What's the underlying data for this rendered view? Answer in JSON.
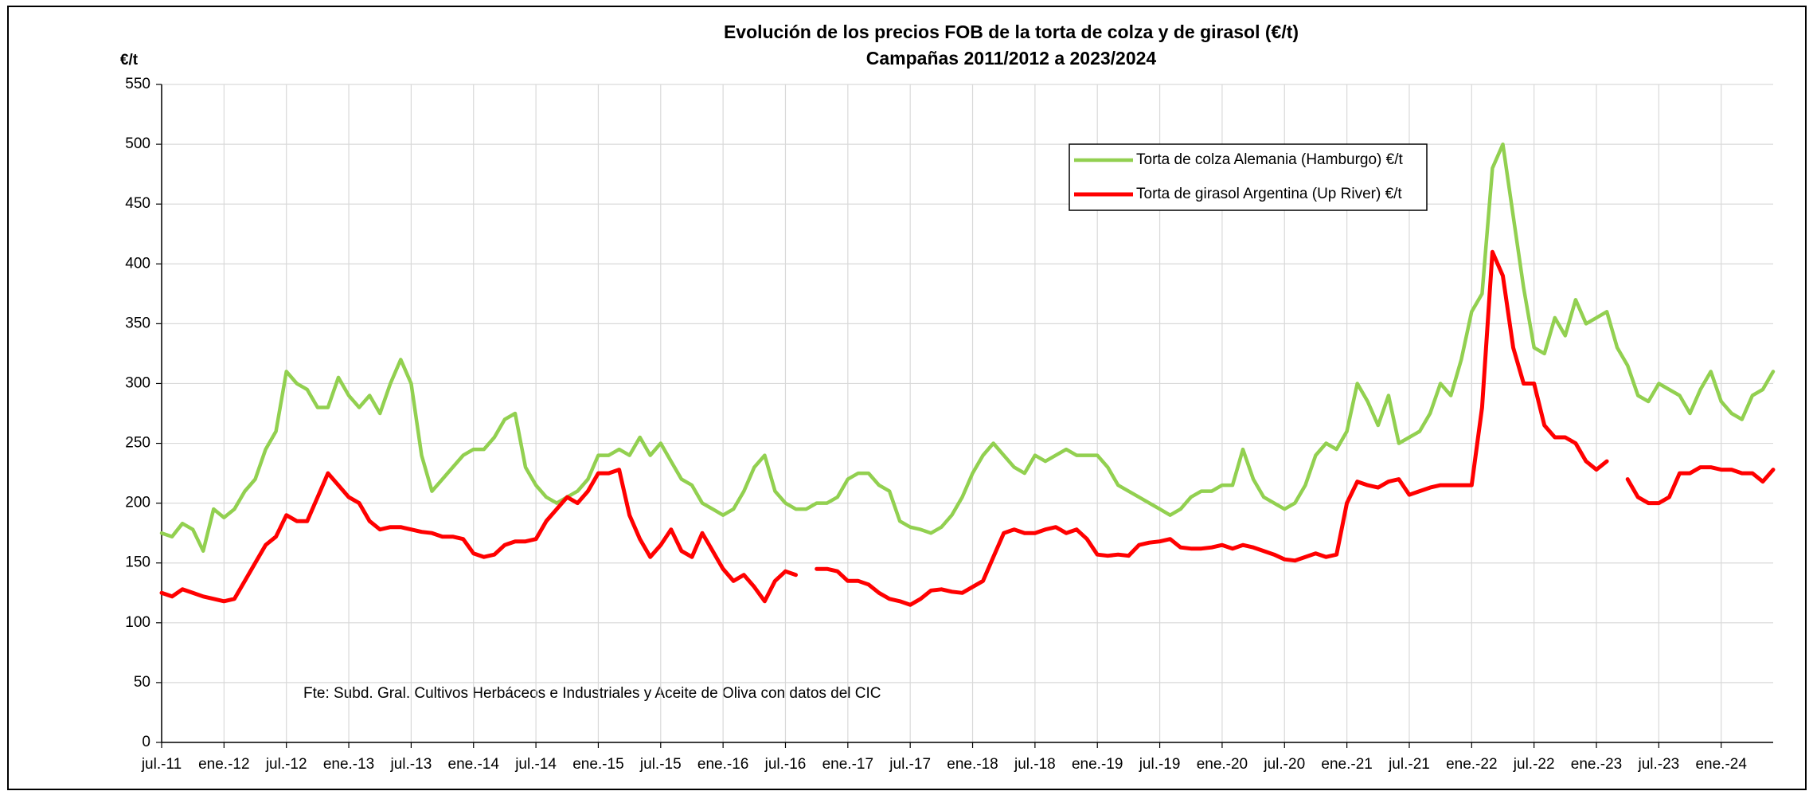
{
  "chart_data": {
    "type": "line",
    "title": "Evolución de los precios FOB de la torta de colza y de girasol (€/t)",
    "subtitle": "Campañas 2011/2012 a 2023/2024",
    "y_label": "€/t",
    "annotation": "Fte: Subd. Gral. Cultivos Herbáceos e Industriales y Aceite de Oliva con datos del CIC",
    "categories": [
      "jul.-11",
      null,
      null,
      null,
      null,
      null,
      "ene.-12",
      null,
      null,
      null,
      null,
      null,
      "jul.-12",
      null,
      null,
      null,
      null,
      null,
      "ene.-13",
      null,
      null,
      null,
      null,
      null,
      "jul.-13",
      null,
      null,
      null,
      null,
      null,
      "ene.-14",
      null,
      null,
      null,
      null,
      null,
      "jul.-14",
      null,
      null,
      null,
      null,
      null,
      "ene.-15",
      null,
      null,
      null,
      null,
      null,
      "jul.-15",
      null,
      null,
      null,
      null,
      null,
      "ene.-16",
      null,
      null,
      null,
      null,
      null,
      "jul.-16",
      null,
      null,
      null,
      null,
      null,
      "ene.-17",
      null,
      null,
      null,
      null,
      null,
      "jul.-17",
      null,
      null,
      null,
      null,
      null,
      "ene.-18",
      null,
      null,
      null,
      null,
      null,
      "jul.-18",
      null,
      null,
      null,
      null,
      null,
      "ene.-19",
      null,
      null,
      null,
      null,
      null,
      "jul.-19",
      null,
      null,
      null,
      null,
      null,
      "ene.-20",
      null,
      null,
      null,
      null,
      null,
      "jul.-20",
      null,
      null,
      null,
      null,
      null,
      "ene.-21",
      null,
      null,
      null,
      null,
      null,
      "jul.-21",
      null,
      null,
      null,
      null,
      null,
      "ene.-22",
      null,
      null,
      null,
      null,
      null,
      "jul.-22",
      null,
      null,
      null,
      null,
      null,
      "ene.-23",
      null,
      null,
      null,
      null,
      null,
      "jul.-23",
      null,
      null,
      null,
      null,
      null,
      "ene.-24",
      null,
      null,
      null,
      null,
      null
    ],
    "series": [
      {
        "name": "Torta de colza Alemania (Hamburgo) €/t",
        "color": "#92d050",
        "values": [
          175,
          172,
          183,
          178,
          160,
          195,
          188,
          195,
          210,
          220,
          245,
          260,
          310,
          300,
          295,
          280,
          280,
          305,
          290,
          280,
          290,
          275,
          300,
          320,
          300,
          240,
          210,
          220,
          230,
          240,
          245,
          245,
          255,
          270,
          275,
          230,
          215,
          205,
          200,
          205,
          210,
          220,
          240,
          240,
          245,
          240,
          255,
          240,
          250,
          235,
          220,
          215,
          200,
          195,
          190,
          195,
          210,
          230,
          240,
          210,
          200,
          195,
          195,
          200,
          200,
          205,
          220,
          225,
          225,
          215,
          210,
          185,
          180,
          178,
          175,
          180,
          190,
          205,
          225,
          240,
          250,
          240,
          230,
          225,
          240,
          235,
          240,
          245,
          240,
          240,
          240,
          230,
          215,
          210,
          205,
          200,
          195,
          190,
          195,
          205,
          210,
          210,
          215,
          215,
          245,
          220,
          205,
          200,
          195,
          200,
          215,
          240,
          250,
          245,
          260,
          300,
          285,
          265,
          290,
          250,
          255,
          260,
          275,
          300,
          290,
          320,
          360,
          375,
          480,
          500,
          440,
          380,
          330,
          325,
          355,
          340,
          370,
          350,
          355,
          360,
          330,
          315,
          290,
          285,
          300,
          295,
          290,
          275,
          295,
          310,
          285,
          275,
          270,
          290,
          295,
          310
        ]
      },
      {
        "name": "Torta de girasol Argentina (Up River) €/t",
        "color": "#ff0000",
        "values": [
          125,
          122,
          128,
          125,
          122,
          120,
          118,
          120,
          135,
          150,
          165,
          172,
          190,
          185,
          185,
          205,
          225,
          215,
          205,
          200,
          185,
          178,
          180,
          180,
          178,
          176,
          175,
          172,
          172,
          170,
          158,
          155,
          157,
          165,
          168,
          168,
          170,
          185,
          195,
          205,
          200,
          210,
          225,
          225,
          228,
          190,
          170,
          155,
          165,
          178,
          160,
          155,
          175,
          160,
          145,
          135,
          140,
          130,
          118,
          135,
          143,
          140,
          null,
          145,
          145,
          143,
          135,
          135,
          132,
          125,
          120,
          118,
          115,
          120,
          127,
          128,
          126,
          125,
          130,
          135,
          155,
          175,
          178,
          175,
          175,
          178,
          180,
          175,
          178,
          170,
          157,
          156,
          157,
          156,
          165,
          167,
          168,
          170,
          163,
          162,
          162,
          163,
          165,
          162,
          165,
          163,
          160,
          157,
          153,
          152,
          155,
          158,
          155,
          157,
          200,
          218,
          215,
          213,
          218,
          220,
          207,
          210,
          213,
          215,
          215,
          215,
          215,
          280,
          410,
          390,
          330,
          300,
          300,
          265,
          255,
          255,
          250,
          235,
          228,
          235,
          null,
          220,
          205,
          200,
          200,
          205,
          225,
          225,
          230,
          230,
          228,
          228,
          225,
          225,
          218,
          228
        ]
      }
    ],
    "ylim": [
      0,
      550
    ],
    "yticks": [
      0,
      50,
      100,
      150,
      200,
      250,
      300,
      350,
      400,
      450,
      500,
      550
    ],
    "grid": true
  }
}
